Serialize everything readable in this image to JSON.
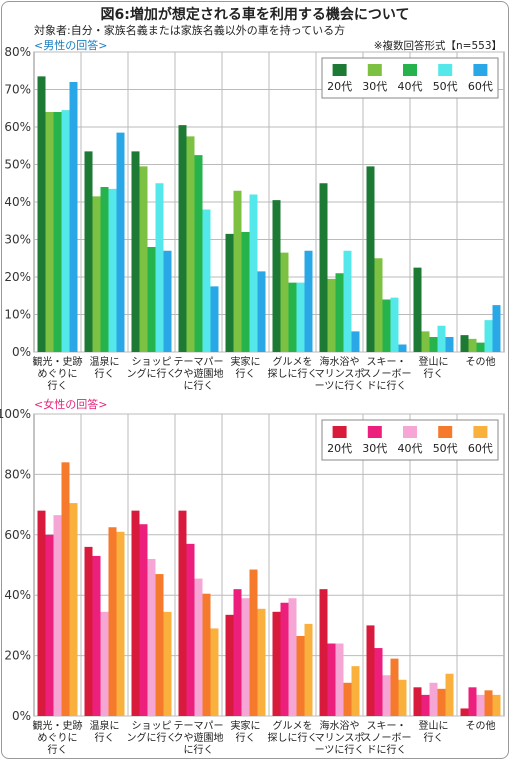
{
  "title": "図6:増加が想定される車を利用する機会について",
  "subject": "対象者:自分・家族名義または家族名義以外の車を持っている方",
  "note": "※複数回答形式【n=553】",
  "chart_data": [
    {
      "type": "bar",
      "title": "<男性の回答>",
      "title_color": "#1a7fc0",
      "ylim": [
        0,
        80
      ],
      "yticks": [
        0,
        10,
        20,
        30,
        40,
        50,
        60,
        70,
        80
      ],
      "ytick_labels": [
        "0%",
        "10%",
        "20%",
        "30%",
        "40%",
        "50%",
        "60%",
        "70%",
        "80%"
      ],
      "grid": true,
      "legend_position": "top-right",
      "categories": [
        [
          "観光・史跡",
          "めぐりに",
          "行く"
        ],
        [
          "温泉に",
          "行く"
        ],
        [
          "ショッピ",
          "ングに行く"
        ],
        [
          "テーマパー",
          "クや遊園地",
          "に行く"
        ],
        [
          "実家に",
          "行く"
        ],
        [
          "グルメを",
          "探しに行く"
        ],
        [
          "海水浴や",
          "マリンスポ",
          "ーツに行く"
        ],
        [
          "スキー・",
          "スノーボー",
          "ドに行く"
        ],
        [
          "登山に",
          "行く"
        ],
        [
          "その他"
        ]
      ],
      "series": [
        {
          "name": "20代",
          "color": "#1d7a35",
          "values": [
            73.5,
            53.5,
            53.5,
            60.5,
            31.5,
            40.5,
            45,
            49.5,
            22.5,
            4.5
          ]
        },
        {
          "name": "30代",
          "color": "#7cc142",
          "values": [
            64,
            41.5,
            49.5,
            57.5,
            43,
            26.5,
            19.5,
            25,
            5.5,
            3.5
          ]
        },
        {
          "name": "40代",
          "color": "#27b34b",
          "values": [
            64,
            44,
            28,
            52.5,
            32,
            18.5,
            21,
            14,
            4,
            2.5
          ]
        },
        {
          "name": "50代",
          "color": "#55e8ea",
          "values": [
            64.5,
            43.5,
            45,
            38,
            42,
            18.5,
            27,
            14.5,
            7,
            8.5
          ]
        },
        {
          "name": "60代",
          "color": "#2aa7e6",
          "values": [
            72,
            58.5,
            27,
            17.5,
            21.5,
            27,
            5.5,
            2,
            4,
            12.5
          ]
        }
      ]
    },
    {
      "type": "bar",
      "title": "<女性の回答>",
      "title_color": "#e8247b",
      "ylim": [
        0,
        100
      ],
      "yticks": [
        0,
        20,
        40,
        60,
        80,
        100
      ],
      "ytick_labels": [
        "0%",
        "20%",
        "40%",
        "60%",
        "80%",
        "100%"
      ],
      "grid": true,
      "legend_position": "top-right",
      "categories": [
        [
          "観光・史跡",
          "めぐりに",
          "行く"
        ],
        [
          "温泉に",
          "行く"
        ],
        [
          "ショッピ",
          "ングに行く"
        ],
        [
          "テーマパー",
          "クや遊園地",
          "に行く"
        ],
        [
          "実家に",
          "行く"
        ],
        [
          "グルメを",
          "探しに行く"
        ],
        [
          "海水浴や",
          "マリンスポ",
          "ーツに行く"
        ],
        [
          "スキー・",
          "スノーボー",
          "ドに行く"
        ],
        [
          "登山に",
          "行く"
        ],
        [
          "その他"
        ]
      ],
      "series": [
        {
          "name": "20代",
          "color": "#d81b3c",
          "values": [
            68,
            56,
            68,
            68,
            33.5,
            34.5,
            42,
            30,
            9.5,
            2.5
          ]
        },
        {
          "name": "30代",
          "color": "#ec1f7d",
          "values": [
            60,
            53,
            63.5,
            57,
            42,
            37.5,
            24,
            22.5,
            7,
            9.5
          ]
        },
        {
          "name": "40代",
          "color": "#f6a6d4",
          "values": [
            66.5,
            34.5,
            52,
            45.5,
            39,
            39,
            24,
            13.5,
            11,
            7
          ]
        },
        {
          "name": "50代",
          "color": "#f57a2c",
          "values": [
            84,
            62.5,
            47,
            40.5,
            48.5,
            26.5,
            11,
            19,
            9,
            8.5
          ]
        },
        {
          "name": "60代",
          "color": "#f9b03c",
          "values": [
            70.5,
            61,
            34.5,
            29,
            35.5,
            30.5,
            16.5,
            12,
            14,
            7
          ]
        }
      ]
    }
  ]
}
